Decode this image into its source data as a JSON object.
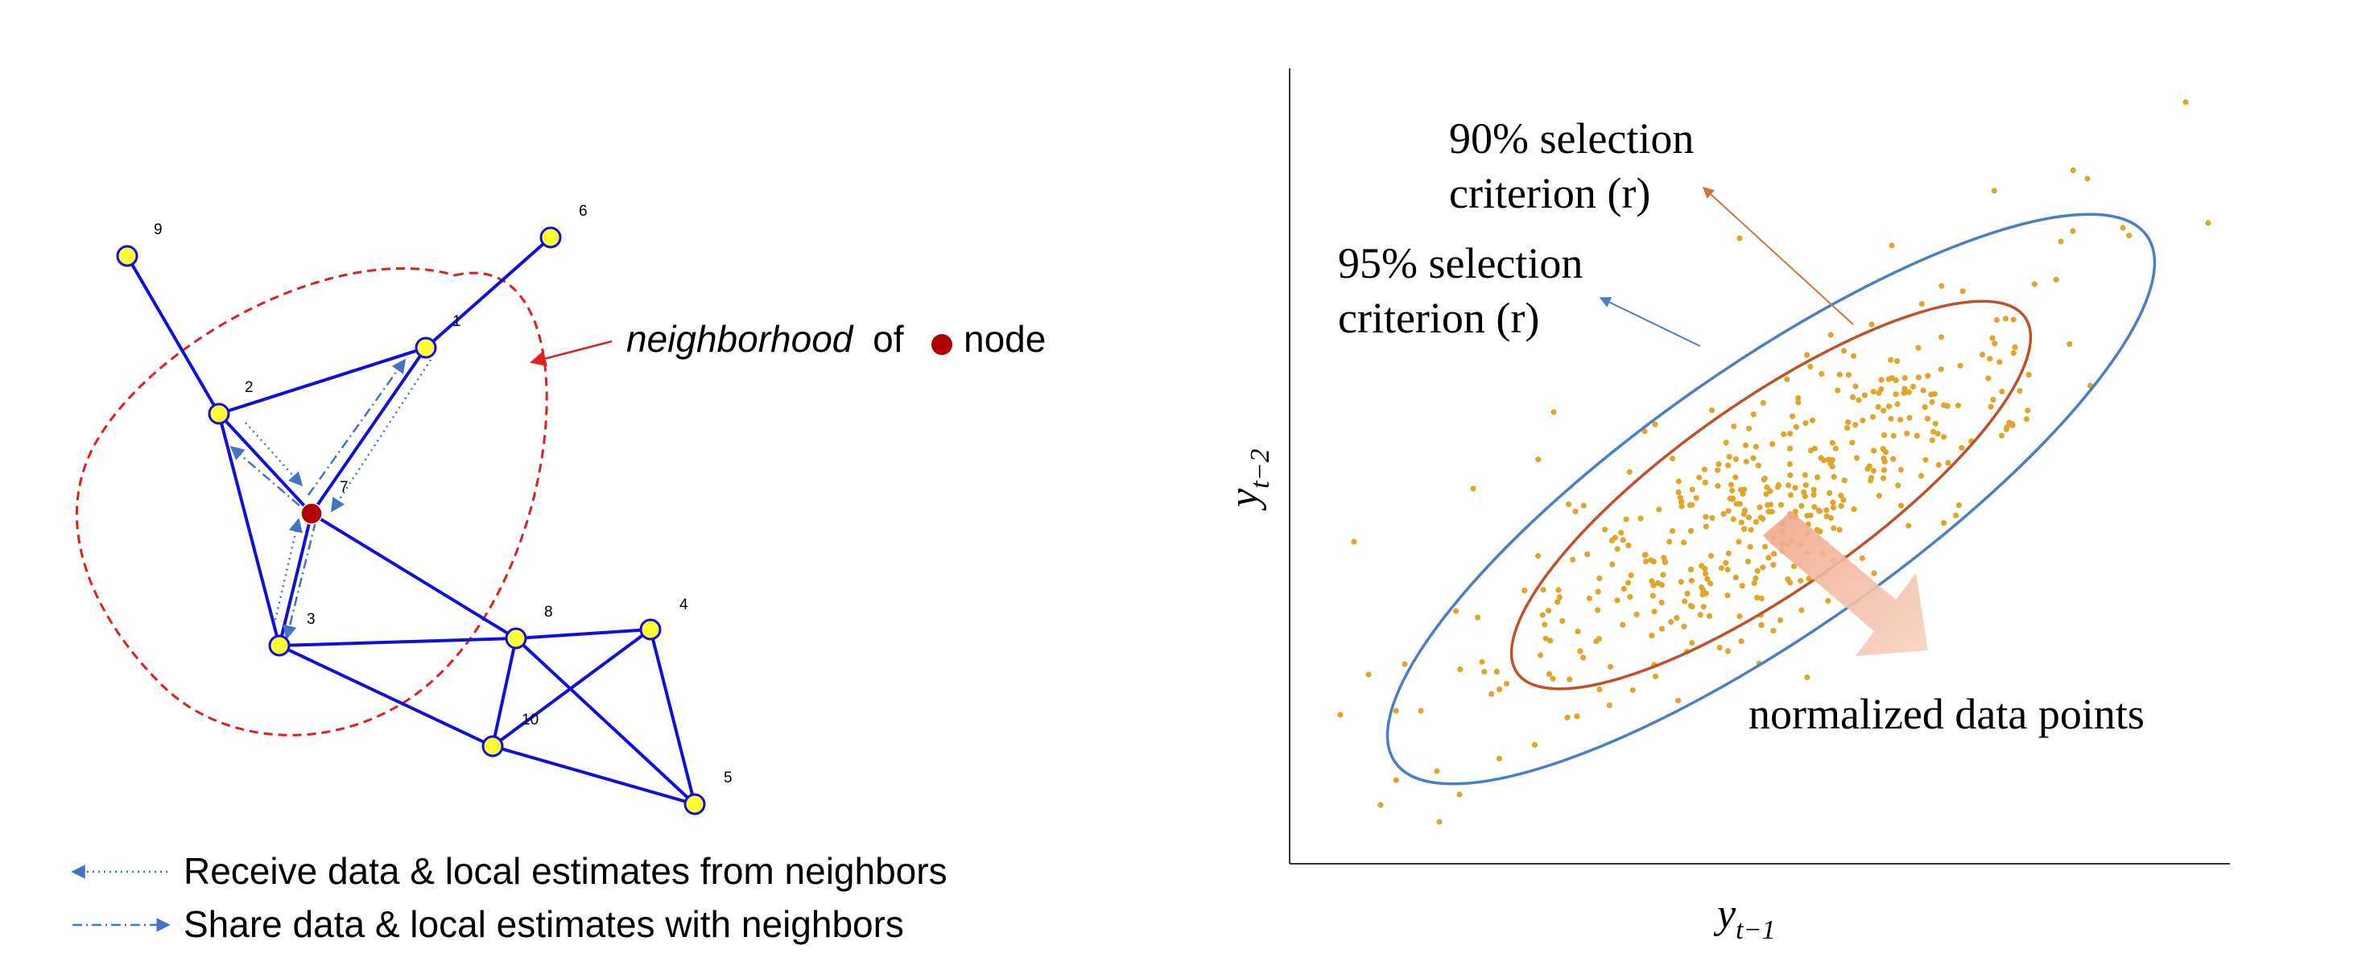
{
  "network": {
    "nodes": [
      {
        "id": "1",
        "label": "1",
        "hub": false
      },
      {
        "id": "2",
        "label": "2",
        "hub": false
      },
      {
        "id": "3",
        "label": "3",
        "hub": false
      },
      {
        "id": "4",
        "label": "4",
        "hub": false
      },
      {
        "id": "5",
        "label": "5",
        "hub": false
      },
      {
        "id": "6",
        "label": "6",
        "hub": false
      },
      {
        "id": "7",
        "label": "7",
        "hub": true
      },
      {
        "id": "8",
        "label": "8",
        "hub": false
      },
      {
        "id": "9",
        "label": "9",
        "hub": false
      },
      {
        "id": "10",
        "label": "10",
        "hub": false
      }
    ],
    "edges": [
      [
        "9",
        "2"
      ],
      [
        "2",
        "1"
      ],
      [
        "1",
        "6"
      ],
      [
        "1",
        "7"
      ],
      [
        "2",
        "7"
      ],
      [
        "2",
        "3"
      ],
      [
        "3",
        "7"
      ],
      [
        "7",
        "8"
      ],
      [
        "3",
        "8"
      ],
      [
        "3",
        "10"
      ],
      [
        "8",
        "4"
      ],
      [
        "8",
        "10"
      ],
      [
        "8",
        "5"
      ],
      [
        "10",
        "4"
      ],
      [
        "10",
        "5"
      ],
      [
        "4",
        "5"
      ]
    ],
    "colors": {
      "edge": "#1010d8",
      "node_fill": "#ffff33",
      "node_stroke": "#1010d8",
      "hub_fill": "#b00000",
      "neighborhood": "#e02020",
      "arrow": "#4472c4"
    },
    "neighborhood_label": {
      "italic": "neighborhood",
      "of": "of",
      "node": "node"
    },
    "legend": {
      "receive": "Receive data & local estimates from neighbors",
      "share": "Share data & local estimates with neighbors"
    }
  },
  "plot": {
    "xlabel_main": "y",
    "xlabel_sub": "t−1",
    "ylabel_main": "y",
    "ylabel_sub": "t−2",
    "label_90_line1": "90% selection",
    "label_90_line2": "criterion (r)",
    "label_95_line1": "95% selection",
    "label_95_line2": "criterion (r)",
    "normalized_label": "normalized data points",
    "colors": {
      "ellipse_95": "#4a7fc4",
      "ellipse_90": "#c0522a",
      "points": "#e0a52a",
      "big_arrow": "#f3b8a0",
      "axes": "#333333"
    }
  }
}
